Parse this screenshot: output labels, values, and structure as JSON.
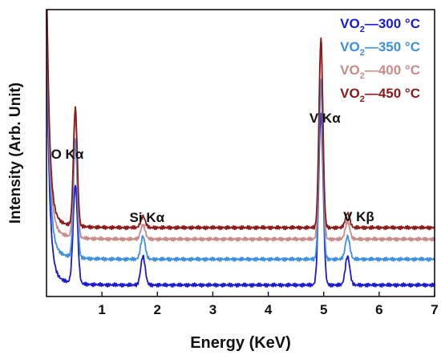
{
  "chart_data": {
    "type": "line",
    "title": "",
    "xlabel": "Energy (KeV)",
    "ylabel": "Intensity (Arb. Unit)",
    "xlim": [
      0.0,
      7.0
    ],
    "x_ticks": [
      "1",
      "2",
      "3",
      "4",
      "5",
      "6",
      "7"
    ],
    "y_ticks": [],
    "grid": false,
    "legend_position": "top-right",
    "peak_annotations": [
      {
        "element": "O",
        "line": "K",
        "greek": "α",
        "x": 0.52
      },
      {
        "element": "Si",
        "line": "K",
        "greek": "α",
        "x": 1.74
      },
      {
        "element": "V",
        "line": "K",
        "greek": "α",
        "x": 4.95
      },
      {
        "element": "V",
        "line": "K",
        "greek": "β",
        "x": 5.43
      }
    ],
    "series": [
      {
        "name": "300 °C",
        "formula": "VO",
        "subscript": "2",
        "color": "#1a1ad6",
        "baseline": 0.04,
        "peaks": [
          [
            0.52,
            0.34,
            0.04
          ],
          [
            1.74,
            0.1,
            0.04
          ],
          [
            4.95,
            0.6,
            0.04
          ],
          [
            5.43,
            0.1,
            0.04
          ]
        ]
      },
      {
        "name": "350 °C",
        "formula": "VO",
        "subscript": "2",
        "color": "#3d8fe0",
        "baseline": 0.13,
        "peaks": [
          [
            0.52,
            0.41,
            0.035
          ],
          [
            1.74,
            0.08,
            0.04
          ],
          [
            4.95,
            0.62,
            0.035
          ],
          [
            5.43,
            0.08,
            0.04
          ]
        ]
      },
      {
        "name": "400 °C",
        "formula": "VO",
        "subscript": "2",
        "color": "#c98b88",
        "baseline": 0.2,
        "peaks": [
          [
            0.52,
            0.42,
            0.035
          ],
          [
            1.74,
            0.05,
            0.04
          ],
          [
            4.95,
            0.67,
            0.035
          ],
          [
            5.43,
            0.06,
            0.04
          ]
        ]
      },
      {
        "name": "450 °C",
        "formula": "VO",
        "subscript": "2",
        "color": "#8b1a1a",
        "baseline": 0.24,
        "peaks": [
          [
            0.52,
            0.41,
            0.035
          ],
          [
            1.74,
            0.04,
            0.04
          ],
          [
            4.95,
            0.66,
            0.035
          ],
          [
            5.43,
            0.05,
            0.04
          ]
        ]
      }
    ]
  }
}
